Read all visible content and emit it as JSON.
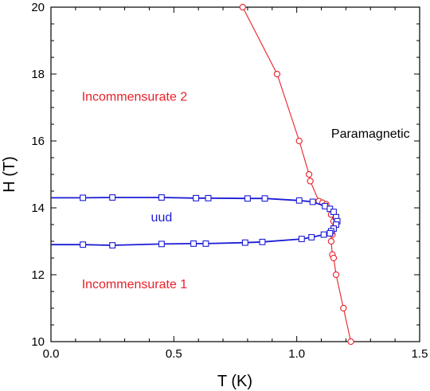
{
  "chart_data": {
    "type": "scatter",
    "xlabel": "T (K)",
    "ylabel": "H (T)",
    "xlim": [
      0.0,
      1.5
    ],
    "ylim": [
      10,
      20
    ],
    "x_ticks": [
      "0.0",
      "0.5",
      "1.0",
      "1.5"
    ],
    "y_ticks": [
      "10",
      "12",
      "14",
      "16",
      "18",
      "20"
    ],
    "grid": false,
    "colors": {
      "red": "#e8202a",
      "blue": "#1c1cd6"
    },
    "annotations": [
      {
        "text": "Incommensurate 2",
        "x": 0.34,
        "y": 17.2,
        "color": "#e8202a"
      },
      {
        "text": "Paramagnetic",
        "x": 1.3,
        "y": 16.1,
        "color": "#000000"
      },
      {
        "text": "uud",
        "x": 0.45,
        "y": 13.6,
        "color": "#1c1cd6"
      },
      {
        "text": "Incommensurate 1",
        "x": 0.34,
        "y": 11.6,
        "color": "#e8202a"
      }
    ],
    "series": [
      {
        "color": "#e8202a",
        "marker": "circle",
        "points": [
          [
            0.78,
            20.0
          ],
          [
            0.92,
            18.0
          ],
          [
            1.01,
            16.0
          ],
          [
            1.05,
            15.0
          ],
          [
            1.055,
            14.8
          ],
          [
            1.09,
            14.2
          ],
          [
            1.105,
            14.15
          ],
          [
            1.12,
            14.1
          ],
          [
            1.14,
            13.8
          ],
          [
            1.15,
            13.6
          ],
          [
            1.15,
            13.4
          ],
          [
            1.145,
            13.2
          ],
          [
            1.14,
            13.0
          ],
          [
            1.145,
            12.6
          ],
          [
            1.15,
            12.5
          ],
          [
            1.16,
            12.0
          ],
          [
            1.19,
            11.0
          ],
          [
            1.22,
            10.0
          ]
        ]
      },
      {
        "color": "#1c1cd6",
        "marker": "square",
        "points": [
          [
            0.0,
            14.3
          ],
          [
            0.13,
            14.3
          ],
          [
            0.25,
            14.31
          ],
          [
            0.45,
            14.31
          ],
          [
            0.59,
            14.29
          ],
          [
            0.64,
            14.29
          ],
          [
            0.8,
            14.28
          ],
          [
            0.87,
            14.28
          ],
          [
            1.01,
            14.22
          ],
          [
            1.065,
            14.18
          ],
          [
            1.115,
            14.05
          ],
          [
            1.135,
            13.97
          ],
          [
            1.15,
            13.88
          ],
          [
            1.16,
            13.72
          ],
          [
            1.165,
            13.6
          ],
          [
            1.16,
            13.5
          ],
          [
            1.15,
            13.38
          ],
          [
            1.14,
            13.3
          ],
          [
            1.135,
            13.24
          ],
          [
            1.11,
            13.2
          ],
          [
            1.06,
            13.12
          ],
          [
            1.02,
            13.07
          ],
          [
            0.86,
            12.98
          ],
          [
            0.79,
            12.96
          ],
          [
            0.63,
            12.93
          ],
          [
            0.58,
            12.93
          ],
          [
            0.45,
            12.92
          ],
          [
            0.25,
            12.88
          ],
          [
            0.13,
            12.9
          ],
          [
            0.0,
            12.9
          ]
        ]
      }
    ]
  }
}
